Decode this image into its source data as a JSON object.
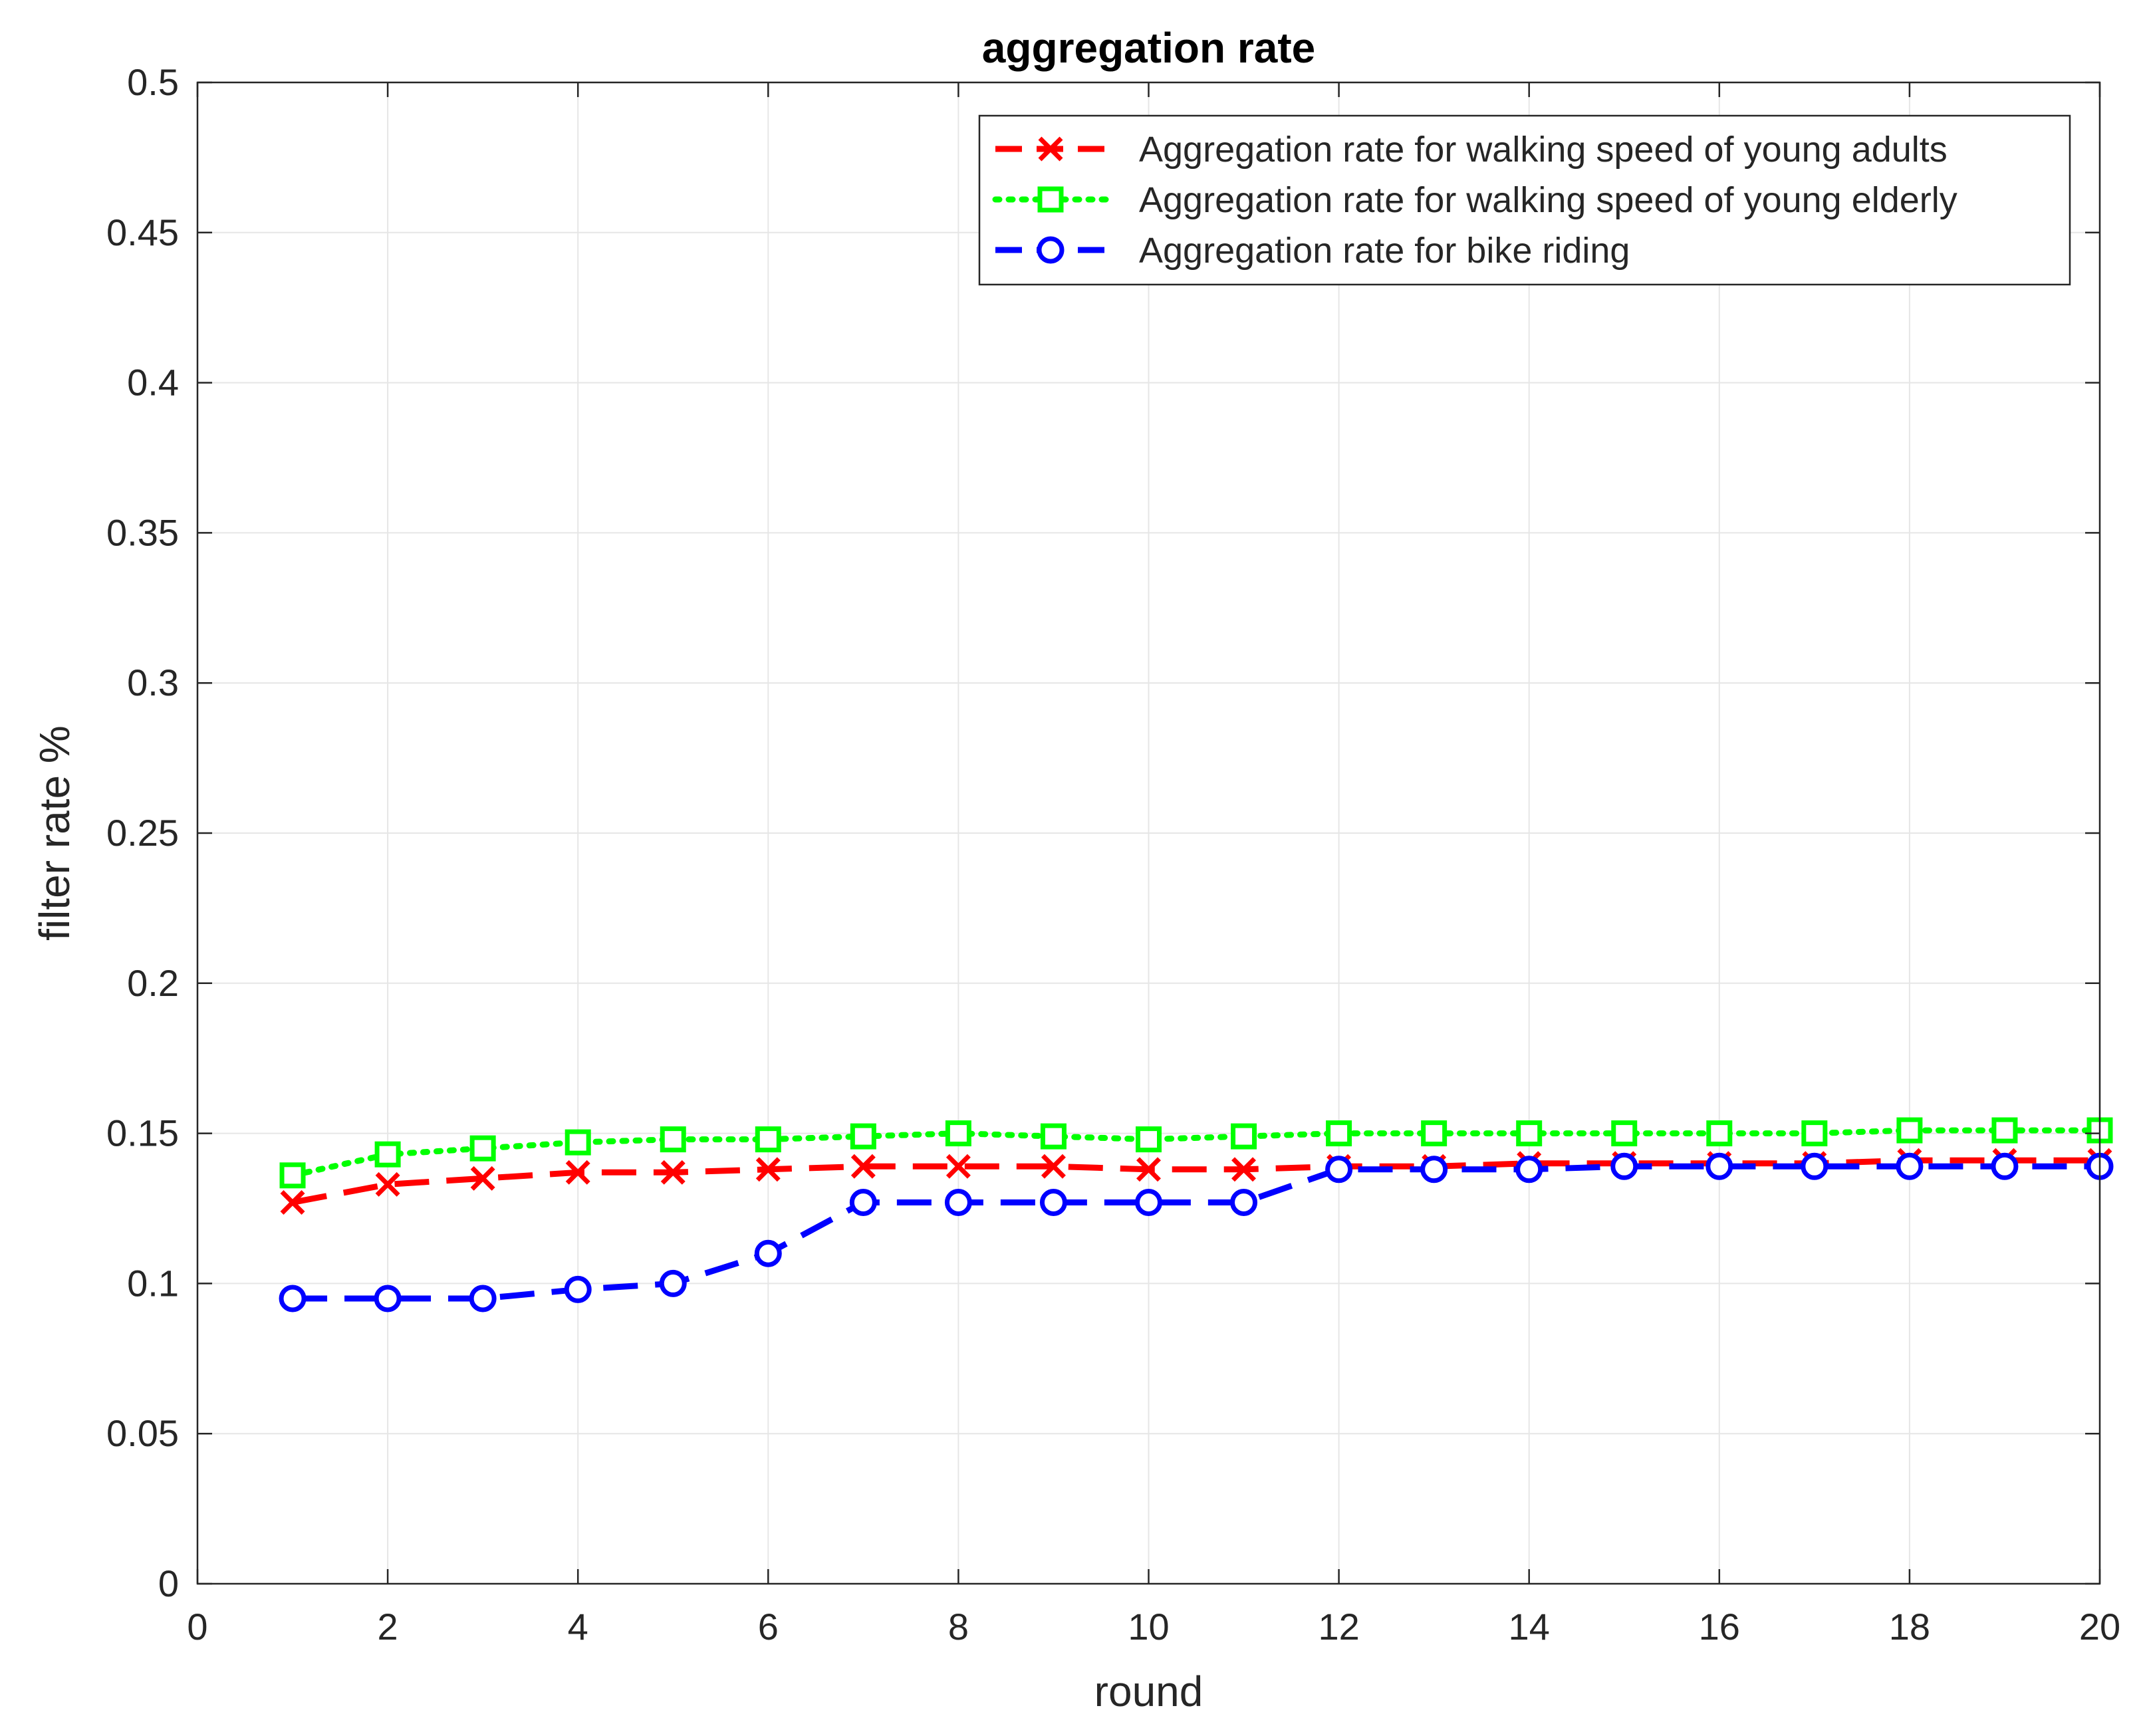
{
  "chart_data": {
    "type": "line",
    "title": "aggregation rate",
    "xlabel": "round",
    "ylabel": "filter rate %",
    "xlim": [
      0,
      20
    ],
    "ylim": [
      0,
      0.5
    ],
    "grid": true,
    "legend_position": "top-right",
    "x_ticks": [
      0,
      2,
      4,
      6,
      8,
      10,
      12,
      14,
      16,
      18,
      20
    ],
    "x_tick_labels": [
      "0",
      "2",
      "4",
      "6",
      "8",
      "10",
      "12",
      "14",
      "16",
      "18",
      "20"
    ],
    "y_ticks": [
      0,
      0.05,
      0.1,
      0.15,
      0.2,
      0.25,
      0.3,
      0.35,
      0.4,
      0.45,
      0.5
    ],
    "y_tick_labels": [
      "0",
      "0.05",
      "0.1",
      "0.15",
      "0.2",
      "0.25",
      "0.3",
      "0.35",
      "0.4",
      "0.45",
      "0.5"
    ],
    "x": [
      1,
      2,
      3,
      4,
      5,
      6,
      7,
      8,
      9,
      10,
      11,
      12,
      13,
      14,
      15,
      16,
      17,
      18,
      19,
      20
    ],
    "series": [
      {
        "name": "Aggregation rate for walking speed of young adults",
        "color": "#ff0000",
        "line_style": "dashed",
        "marker": "x",
        "values": [
          0.127,
          0.133,
          0.135,
          0.137,
          0.137,
          0.138,
          0.139,
          0.139,
          0.139,
          0.138,
          0.138,
          0.139,
          0.139,
          0.14,
          0.14,
          0.14,
          0.14,
          0.141,
          0.141,
          0.141
        ]
      },
      {
        "name": "Aggregation rate for walking speed of young elderly",
        "color": "#00ff00",
        "line_style": "dotted",
        "marker": "square",
        "values": [
          0.136,
          0.143,
          0.145,
          0.147,
          0.148,
          0.148,
          0.149,
          0.15,
          0.149,
          0.148,
          0.149,
          0.15,
          0.15,
          0.15,
          0.15,
          0.15,
          0.15,
          0.151,
          0.151,
          0.151
        ]
      },
      {
        "name": "Aggregation rate for bike riding",
        "color": "#0000ff",
        "line_style": "dashed",
        "marker": "circle",
        "values": [
          0.095,
          0.095,
          0.095,
          0.098,
          0.1,
          0.11,
          0.127,
          0.127,
          0.127,
          0.127,
          0.127,
          0.138,
          0.138,
          0.138,
          0.139,
          0.139,
          0.139,
          0.139,
          0.139,
          0.139
        ]
      }
    ]
  }
}
